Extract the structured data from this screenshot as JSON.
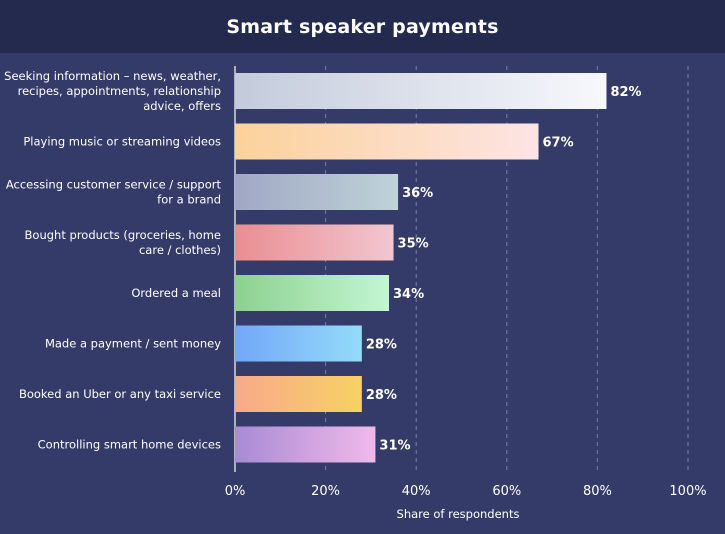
{
  "title": "Smart speaker payments",
  "chart_data": {
    "type": "bar",
    "orientation": "horizontal",
    "title": "Smart speaker payments",
    "xlabel": "Share of respondents",
    "ylabel": "",
    "xlim": [
      0,
      100
    ],
    "x_ticks": [
      "0%",
      "20%",
      "40%",
      "60%",
      "80%",
      "100%"
    ],
    "grid": "vertical dashed",
    "categories": [
      "Seeking information – news, weather, recipes, appointments, relationship advice, offers",
      "Playing music or streaming videos",
      "Accessing customer service / support for a brand",
      "Bought products (groceries, home care / clothes)",
      "Ordered a meal",
      "Made a payment / sent money",
      "Booked an Uber or any taxi service",
      "Controlling smart home devices"
    ],
    "category_lines": [
      [
        "Seeking information – news, weather,",
        "recipes, appointments, relationship",
        "advice, offers"
      ],
      [
        "Playing music or streaming videos"
      ],
      [
        "Accessing customer service / support",
        "for a brand"
      ],
      [
        "Bought products (groceries, home",
        "care / clothes)"
      ],
      [
        "Ordered a meal"
      ],
      [
        "Made a payment / sent money"
      ],
      [
        "Booked an Uber or any taxi service"
      ],
      [
        "Controlling smart home devices"
      ]
    ],
    "values": [
      82,
      67,
      36,
      35,
      34,
      28,
      28,
      31
    ],
    "value_labels": [
      "82%",
      "67%",
      "36%",
      "35%",
      "34%",
      "28%",
      "28%",
      "31%"
    ],
    "colors": [
      [
        "#c3cbdb",
        "#f7f8fc"
      ],
      [
        "#fbd29a",
        "#fde4e4"
      ],
      [
        "#a0a7c4",
        "#bfd3d9"
      ],
      [
        "#e98e91",
        "#f2c6cf"
      ],
      [
        "#8cd18e",
        "#c3f6d3"
      ],
      [
        "#72a7f8",
        "#94dbf9"
      ],
      [
        "#f9a98b",
        "#f6d264"
      ],
      [
        "#a88bd4",
        "#f0b9ea"
      ]
    ],
    "background": "#353b68",
    "title_background": "#242a4d",
    "grid_color": "#7a80a8"
  }
}
